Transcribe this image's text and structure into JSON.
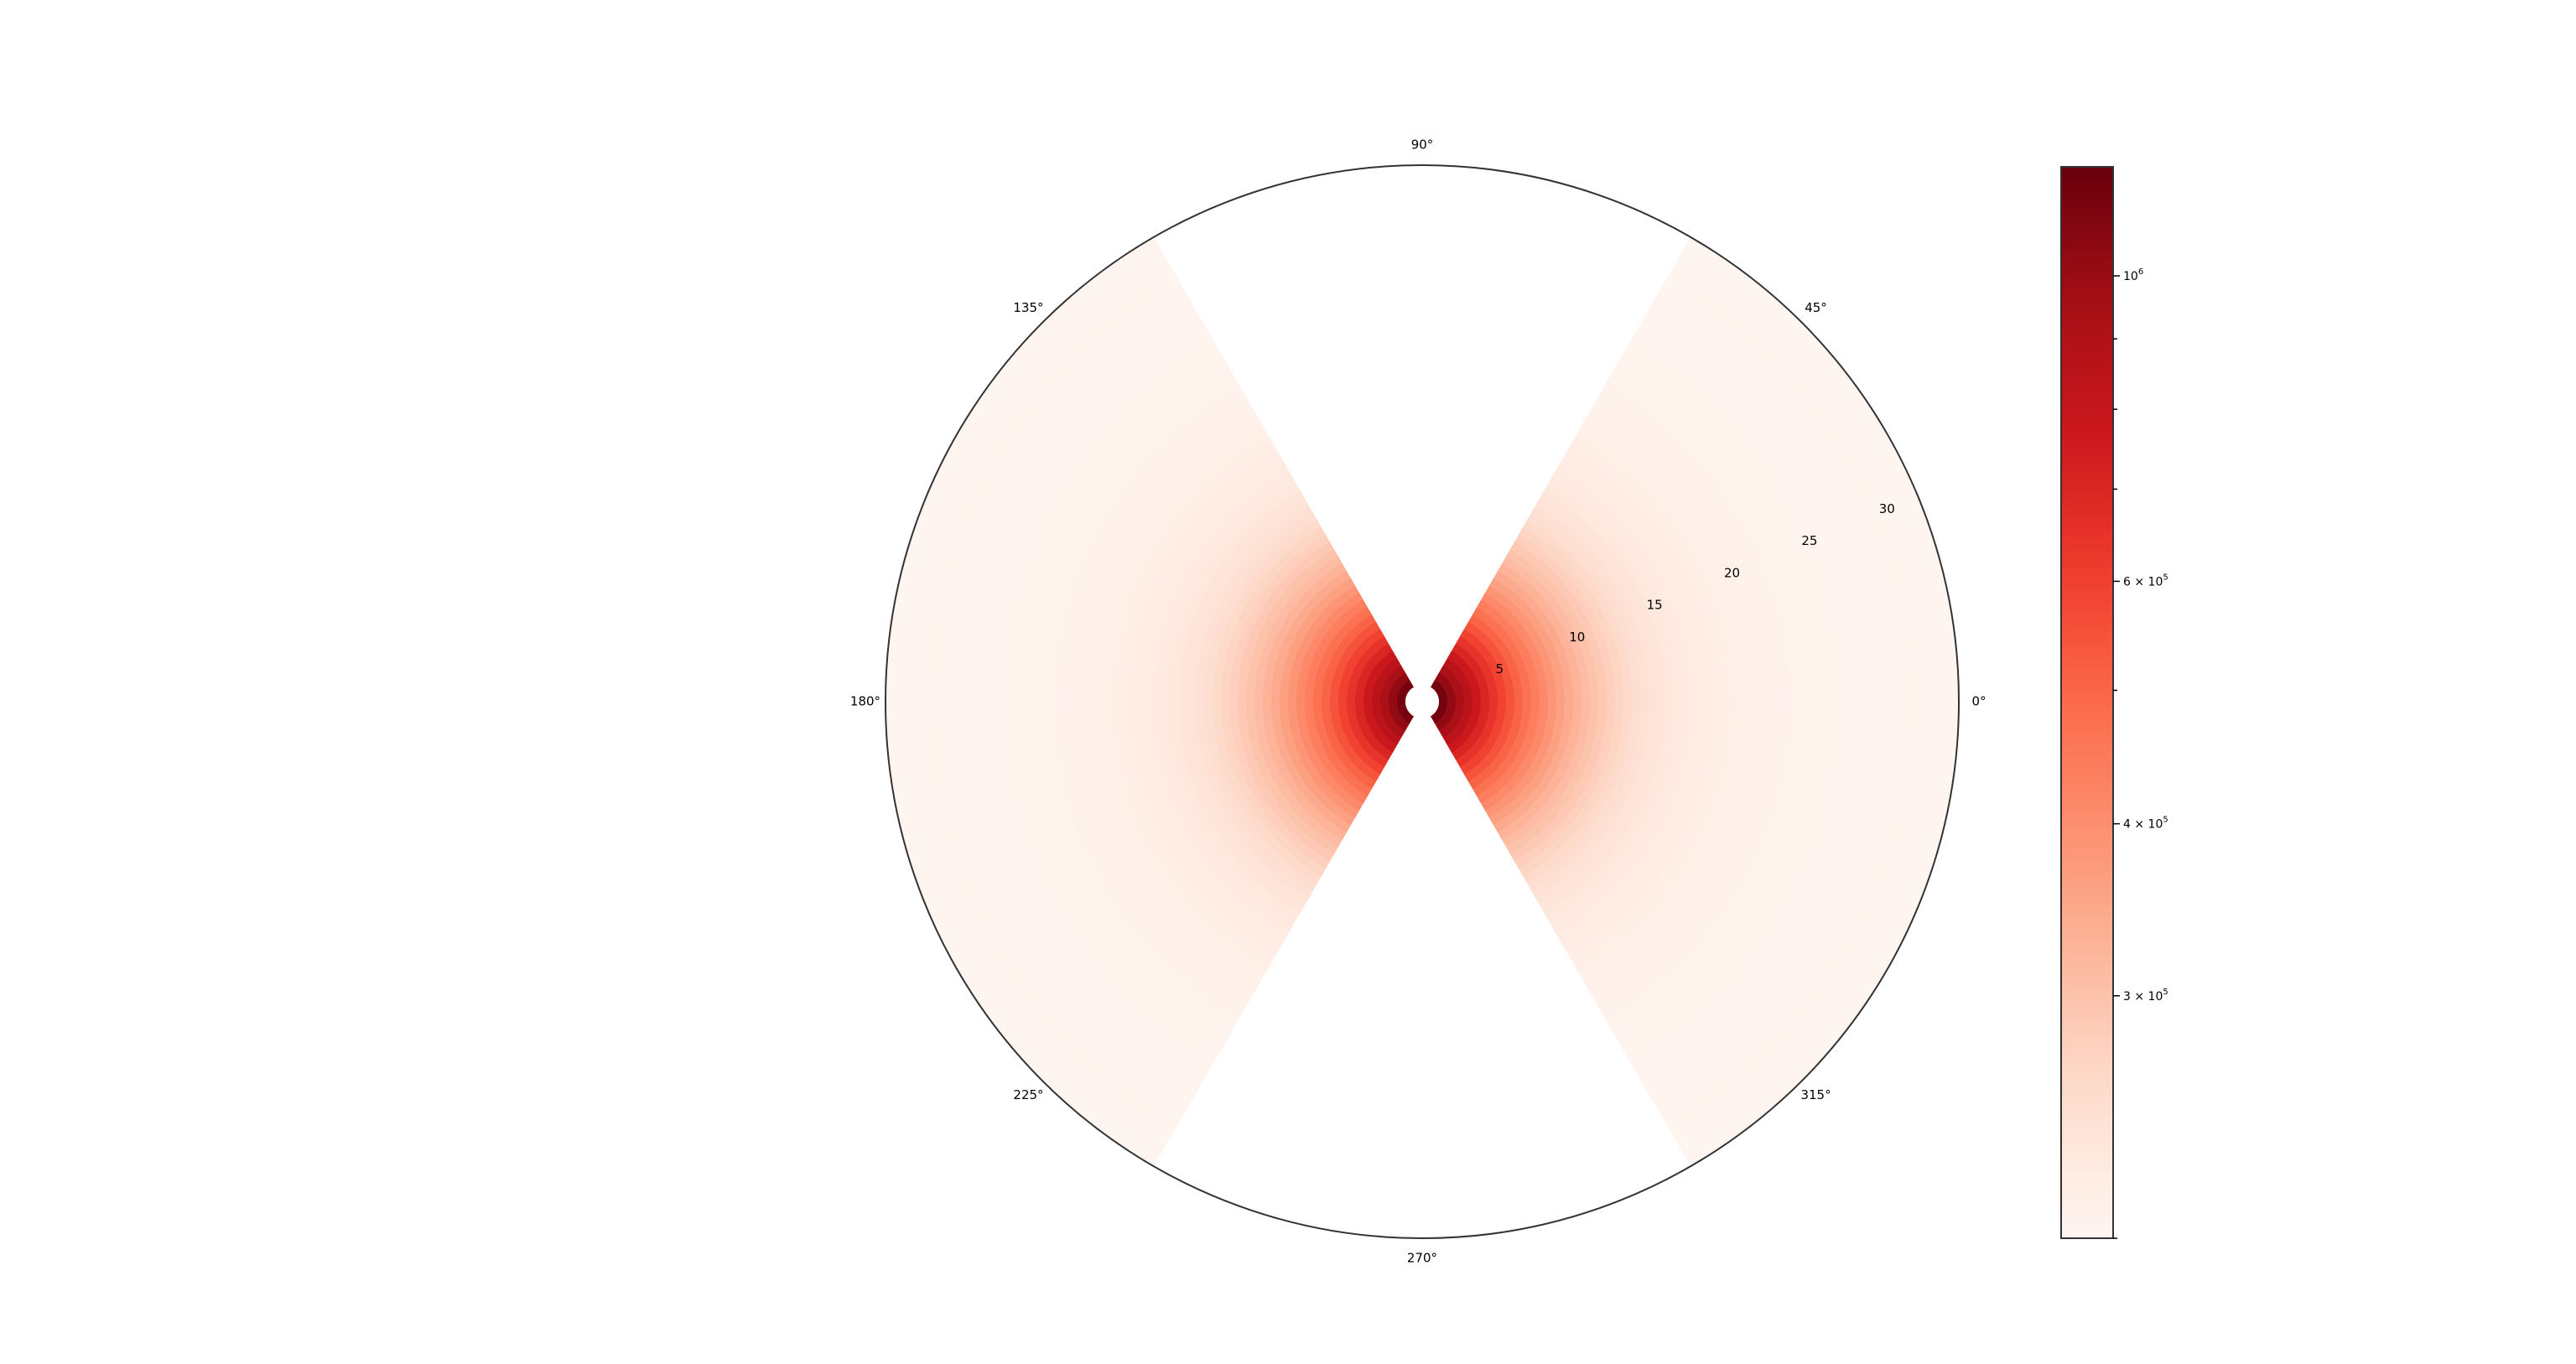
{
  "chart_data": {
    "type": "heatmap",
    "projection": "polar",
    "title": "",
    "r_min": 1,
    "r_max": 32,
    "r_ticks": [
      5,
      10,
      15,
      20,
      25,
      30
    ],
    "r_tick_labels": [
      "5",
      "10",
      "15",
      "20",
      "25",
      "30"
    ],
    "theta_ticks_deg": [
      0,
      45,
      90,
      135,
      180,
      225,
      270,
      315
    ],
    "theta_tick_labels": [
      "0°",
      "45°",
      "90°",
      "135°",
      "180°",
      "225°",
      "270°",
      "315°"
    ],
    "sectors_deg": [
      [
        -60,
        60
      ],
      [
        120,
        240
      ]
    ],
    "value_model": "value(r) = 200000 + 1000000 * exp(-(r - 1) / 4)",
    "colormap": "Reds",
    "colorbar": {
      "scale": "log",
      "min": 200000,
      "max": 1200000,
      "tick_values": [
        1000000,
        600000,
        400000,
        300000
      ],
      "tick_labels": [
        {
          "base": "10",
          "exp": "6"
        },
        {
          "base": "6 × 10",
          "exp": "5"
        },
        {
          "base": "4 × 10",
          "exp": "5"
        },
        {
          "base": "3 × 10",
          "exp": "5"
        }
      ],
      "minor_tick_values": [
        200000,
        500000,
        700000,
        800000,
        900000
      ]
    },
    "colors": {
      "frame": "#333333",
      "cmap_stops": [
        "#fff5f0",
        "#fee0d2",
        "#fcbba1",
        "#fc9272",
        "#fb6a4a",
        "#ef3b2c",
        "#cb181d",
        "#a50f15",
        "#67000d"
      ]
    }
  }
}
